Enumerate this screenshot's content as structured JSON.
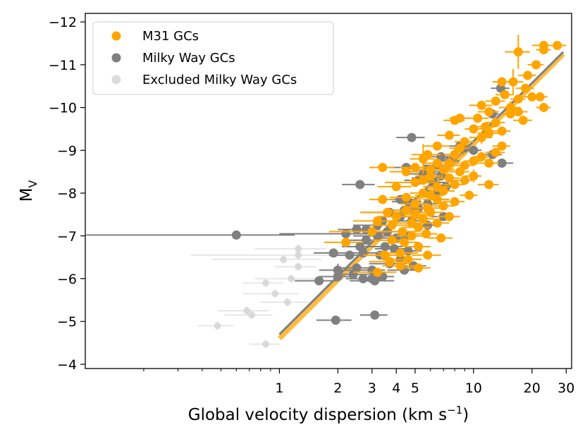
{
  "chart_data": {
    "type": "scatter",
    "title": "",
    "xlabel": "Global velocity dispersion (km s",
    "xlabel_sup": "−1",
    "xlabel_close": ")",
    "ylabel": "M",
    "ylabel_sub": "V",
    "xscale": "log",
    "xlim": [
      0.1,
      32
    ],
    "ylim": [
      -3.9,
      -12.2
    ],
    "x_ticks": [
      {
        "value": 1,
        "label": "1"
      },
      {
        "value": 2,
        "label": "2"
      },
      {
        "value": 3,
        "label": "3"
      },
      {
        "value": 4,
        "label": "4"
      },
      {
        "value": 5,
        "label": "5"
      },
      {
        "value": 10,
        "label": "10"
      },
      {
        "value": 20,
        "label": "20"
      },
      {
        "value": 30,
        "label": "30"
      }
    ],
    "y_ticks": [
      {
        "value": -4,
        "label": "−4"
      },
      {
        "value": -5,
        "label": "−5"
      },
      {
        "value": -6,
        "label": "−6"
      },
      {
        "value": -7,
        "label": "−7"
      },
      {
        "value": -8,
        "label": "−8"
      },
      {
        "value": -9,
        "label": "−9"
      },
      {
        "value": -10,
        "label": "−10"
      },
      {
        "value": -11,
        "label": "−11"
      },
      {
        "value": -12,
        "label": "−12"
      }
    ],
    "legend_position": "top-left",
    "series": [
      {
        "name": "M31 GCs",
        "color": "#FFA500",
        "points": [
          [
            27,
            -11.45,
            3,
            0.05
          ],
          [
            23,
            -11.45,
            3,
            0.08
          ],
          [
            23,
            -11.35,
            2,
            0.05
          ],
          [
            17,
            -11.3,
            2.5,
            0.4
          ],
          [
            21,
            -11.0,
            2,
            0.1
          ],
          [
            19,
            -10.75,
            2,
            0.1
          ],
          [
            16,
            -10.6,
            2,
            0.3
          ],
          [
            14,
            -10.6,
            1.5,
            0.1
          ],
          [
            18.5,
            -10.45,
            2,
            0.1
          ],
          [
            20,
            -10.25,
            2,
            0.1
          ],
          [
            14.5,
            -10.3,
            1.5,
            0.1
          ],
          [
            17,
            -10.2,
            1.5,
            0.1
          ],
          [
            22,
            -10.25,
            2,
            0.1
          ],
          [
            13,
            -10.15,
            1.5,
            0.1
          ],
          [
            15.5,
            -10.0,
            2,
            0.15
          ],
          [
            11,
            -10.05,
            1.5,
            0.1
          ],
          [
            12,
            -9.9,
            1.5,
            0.1
          ],
          [
            17,
            -9.9,
            2,
            0.1
          ],
          [
            23,
            -10.0,
            2,
            0.1
          ],
          [
            15.5,
            -9.85,
            1.5,
            0.1
          ],
          [
            10.5,
            -9.75,
            1.5,
            0.1
          ],
          [
            8.5,
            -9.75,
            1,
            0.1
          ],
          [
            8,
            -9.7,
            1,
            0.1
          ],
          [
            13,
            -9.65,
            1.5,
            0.1
          ],
          [
            18,
            -9.7,
            2,
            0.1
          ],
          [
            11.5,
            -9.55,
            1.5,
            0.1
          ],
          [
            10,
            -9.5,
            1,
            0.1
          ],
          [
            14,
            -9.45,
            1.5,
            0.1
          ],
          [
            12,
            -9.4,
            1.5,
            0.1
          ],
          [
            7.5,
            -9.35,
            1,
            0.1
          ],
          [
            11,
            -9.3,
            1.5,
            0.15
          ],
          [
            9,
            -9.2,
            1,
            0.1
          ],
          [
            8.5,
            -9.05,
            1,
            0.1
          ],
          [
            14,
            -9.1,
            1.5,
            0.1
          ],
          [
            6.5,
            -9.1,
            1,
            0.1
          ],
          [
            13,
            -8.95,
            1.5,
            0.1
          ],
          [
            5.8,
            -8.9,
            1,
            0.1
          ],
          [
            8,
            -8.9,
            1,
            0.15
          ],
          [
            11,
            -8.85,
            1,
            0.1
          ],
          [
            10,
            -8.75,
            1,
            0.1
          ],
          [
            5.5,
            -8.8,
            0.8,
            0.35
          ],
          [
            6.5,
            -8.7,
            1,
            0.1
          ],
          [
            12,
            -8.7,
            1.5,
            0.1
          ],
          [
            7.5,
            -8.7,
            1,
            0.15
          ],
          [
            9,
            -8.65,
            1,
            0.1
          ],
          [
            5,
            -8.6,
            0.8,
            0.1
          ],
          [
            3.4,
            -8.6,
            0.5,
            0.1
          ],
          [
            6,
            -8.55,
            1,
            0.1
          ],
          [
            7,
            -8.55,
            1,
            0.1
          ],
          [
            8.5,
            -8.5,
            1,
            0.1
          ],
          [
            4.5,
            -8.5,
            0.8,
            0.1
          ],
          [
            10,
            -8.4,
            1,
            0.15
          ],
          [
            6,
            -8.4,
            1,
            0.1
          ],
          [
            7.5,
            -8.35,
            1,
            0.1
          ],
          [
            9,
            -8.3,
            1,
            0.1
          ],
          [
            5.5,
            -8.3,
            0.8,
            0.1
          ],
          [
            5,
            -8.25,
            1.5,
            0.1
          ],
          [
            12,
            -8.2,
            1.5,
            0.1
          ],
          [
            8,
            -8.2,
            1,
            0.1
          ],
          [
            6.5,
            -8.15,
            1,
            0.1
          ],
          [
            7,
            -8.05,
            1,
            0.1
          ],
          [
            4,
            -8.15,
            0.8,
            0.1
          ],
          [
            5.5,
            -8.0,
            0.8,
            0.1
          ],
          [
            9.5,
            -7.95,
            1,
            0.1
          ],
          [
            6,
            -7.95,
            1,
            0.1
          ],
          [
            4.5,
            -7.9,
            0.8,
            0.1
          ],
          [
            3.4,
            -7.85,
            0.5,
            0.1
          ],
          [
            6.5,
            -7.85,
            1,
            0.1
          ],
          [
            8,
            -7.8,
            1,
            0.1
          ],
          [
            5,
            -7.75,
            0.8,
            0.1
          ],
          [
            7,
            -7.7,
            1,
            0.1
          ],
          [
            5.8,
            -7.65,
            1,
            0.1
          ],
          [
            4.5,
            -7.6,
            0.8,
            0.1
          ],
          [
            3.6,
            -7.55,
            1,
            0.1
          ],
          [
            6,
            -7.55,
            1,
            0.1
          ],
          [
            5,
            -7.5,
            0.8,
            0.1
          ],
          [
            7.5,
            -7.45,
            1,
            0.1
          ],
          [
            4,
            -7.45,
            0.8,
            0.1
          ],
          [
            5.5,
            -7.4,
            0.8,
            0.1
          ],
          [
            3.2,
            -7.35,
            0.8,
            0.1
          ],
          [
            4.8,
            -7.3,
            1,
            0.1
          ],
          [
            6.5,
            -7.3,
            1,
            0.1
          ],
          [
            3.8,
            -7.25,
            0.8,
            0.1
          ],
          [
            5.2,
            -7.2,
            0.8,
            0.1
          ],
          [
            4.3,
            -7.1,
            0.8,
            0.1
          ],
          [
            3,
            -7.1,
            1.2,
            0.1
          ],
          [
            5.7,
            -7.05,
            0.8,
            0.1
          ],
          [
            4.8,
            -7.0,
            0.8,
            0.1
          ],
          [
            6.8,
            -6.95,
            1,
            0.1
          ],
          [
            3.8,
            -6.9,
            0.8,
            0.1
          ],
          [
            4.4,
            -6.85,
            0.8,
            0.1
          ],
          [
            2.2,
            -6.85,
            0.5,
            0.1
          ],
          [
            5.2,
            -6.75,
            0.8,
            0.1
          ],
          [
            4.2,
            -6.6,
            1,
            0.1
          ],
          [
            5.8,
            -6.55,
            1,
            0.1
          ],
          [
            3.5,
            -6.55,
            0.8,
            0.1
          ],
          [
            4.6,
            -6.45,
            0.8,
            0.1
          ],
          [
            3.7,
            -6.4,
            0.8,
            0.1
          ],
          [
            4.2,
            -6.3,
            0.8,
            0.1
          ],
          [
            5.2,
            -6.25,
            0.8,
            0.1
          ],
          [
            3.2,
            -6.15,
            0.8,
            0.1
          ]
        ]
      },
      {
        "name": "Milky Way GCs",
        "color": "#808080",
        "points": [
          [
            13.8,
            -10.45,
            1.5,
            0.1
          ],
          [
            12.5,
            -9.85,
            1,
            0.1
          ],
          [
            4.8,
            -9.3,
            0.8,
            0.1
          ],
          [
            8.5,
            -9.1,
            1,
            0.1
          ],
          [
            9,
            -9.05,
            1,
            0.1
          ],
          [
            10,
            -9.0,
            1,
            0.1
          ],
          [
            8,
            -8.9,
            1,
            0.1
          ],
          [
            12.5,
            -8.9,
            1.5,
            0.1
          ],
          [
            6.8,
            -8.85,
            1,
            0.1
          ],
          [
            7.5,
            -8.75,
            1,
            0.1
          ],
          [
            14,
            -8.7,
            2,
            0.1
          ],
          [
            6.5,
            -8.65,
            1,
            0.1
          ],
          [
            4.5,
            -8.6,
            0.8,
            0.1
          ],
          [
            5.8,
            -8.55,
            1,
            0.1
          ],
          [
            6,
            -8.5,
            1,
            0.1
          ],
          [
            5.5,
            -8.45,
            1,
            0.1
          ],
          [
            6.8,
            -8.4,
            1,
            0.1
          ],
          [
            5.8,
            -8.35,
            1,
            0.1
          ],
          [
            5.2,
            -8.3,
            0.8,
            0.1
          ],
          [
            6.2,
            -8.25,
            1,
            0.1
          ],
          [
            2.6,
            -8.2,
            0.5,
            0.1
          ],
          [
            7.2,
            -8.15,
            1,
            0.1
          ],
          [
            6.5,
            -8.05,
            1,
            0.1
          ],
          [
            5.6,
            -8.0,
            0.8,
            0.1
          ],
          [
            4.2,
            -7.85,
            0.8,
            0.1
          ],
          [
            6.5,
            -7.85,
            1,
            0.1
          ],
          [
            4.6,
            -7.8,
            0.8,
            0.1
          ],
          [
            5.8,
            -7.75,
            0.8,
            0.1
          ],
          [
            5.2,
            -7.65,
            0.8,
            0.1
          ],
          [
            4.4,
            -7.6,
            0.8,
            0.1
          ],
          [
            3.7,
            -7.55,
            1,
            0.1
          ],
          [
            5,
            -7.55,
            0.8,
            0.1
          ],
          [
            7,
            -7.45,
            1,
            0.1
          ],
          [
            4.2,
            -7.45,
            0.8,
            0.1
          ],
          [
            3.4,
            -7.35,
            1,
            0.1
          ],
          [
            4.8,
            -7.35,
            0.8,
            0.1
          ],
          [
            5.8,
            -7.25,
            0.8,
            0.1
          ],
          [
            3.2,
            -7.25,
            0.8,
            0.1
          ],
          [
            2.8,
            -7.15,
            0.5,
            0.1
          ],
          [
            3.6,
            -7.1,
            0.8,
            0.1
          ],
          [
            2.5,
            -7.15,
            0.5,
            0.1
          ],
          [
            4.5,
            -7.0,
            0.8,
            0.1
          ],
          [
            3.2,
            -7.0,
            0.8,
            0.1
          ],
          [
            2.2,
            -7.05,
            1.2,
            0.1
          ],
          [
            4,
            -6.95,
            0.8,
            0.1
          ],
          [
            0.6,
            -7.02,
            0.6,
            0.1
          ],
          [
            2.8,
            -6.9,
            0.5,
            0.1
          ],
          [
            3.5,
            -6.75,
            0.8,
            0.1
          ],
          [
            2.6,
            -6.75,
            0.5,
            0.1
          ],
          [
            3.9,
            -6.7,
            0.8,
            0.1
          ],
          [
            4.6,
            -6.65,
            0.8,
            0.1
          ],
          [
            2.7,
            -6.6,
            0.5,
            0.1
          ],
          [
            3.3,
            -6.55,
            0.8,
            0.1
          ],
          [
            1.9,
            -6.6,
            0.4,
            0.1
          ],
          [
            2.3,
            -6.55,
            0.5,
            0.1
          ],
          [
            4.2,
            -6.45,
            0.8,
            0.1
          ],
          [
            3.7,
            -6.35,
            0.8,
            0.1
          ],
          [
            4.9,
            -6.3,
            0.8,
            0.1
          ],
          [
            2.5,
            -6.25,
            0.5,
            0.1
          ],
          [
            4.4,
            -6.2,
            0.8,
            0.1
          ],
          [
            3,
            -6.2,
            0.5,
            0.1
          ],
          [
            2,
            -6.2,
            0.4,
            0.15
          ],
          [
            2.4,
            -6.1,
            0.5,
            0.1
          ],
          [
            2,
            -6.05,
            0.4,
            0.1
          ],
          [
            3.4,
            -6.05,
            0.5,
            0.1
          ],
          [
            3,
            -6.0,
            0.5,
            0.1
          ],
          [
            2.7,
            -6.0,
            0.5,
            0.1
          ],
          [
            3.1,
            -5.95,
            0.8,
            0.1
          ],
          [
            1.6,
            -5.95,
            0.4,
            0.1
          ],
          [
            3.1,
            -5.15,
            0.5,
            0.1
          ],
          [
            1.95,
            -5.03,
            0.4,
            0.1
          ]
        ]
      },
      {
        "name": "Excluded Milky Way GCs",
        "color": "#D3D3D3",
        "points": [
          [
            1.25,
            -6.7,
            0.5,
            0.1
          ],
          [
            1.25,
            -6.55,
            0.9,
            0.1
          ],
          [
            1.05,
            -6.45,
            0.6,
            0.1
          ],
          [
            1.25,
            -6.28,
            0.3,
            0.1
          ],
          [
            1.15,
            -6.0,
            0.4,
            0.1
          ],
          [
            0.85,
            -5.9,
            0.2,
            0.1
          ],
          [
            0.95,
            -5.65,
            0.3,
            0.1
          ],
          [
            1.1,
            -5.45,
            0.3,
            0.1
          ],
          [
            0.68,
            -5.25,
            0.2,
            0.1
          ],
          [
            0.72,
            -5.15,
            0.2,
            0.1
          ],
          [
            0.48,
            -4.9,
            0.1,
            0.1
          ],
          [
            0.85,
            -4.47,
            0.15,
            0.1
          ]
        ]
      }
    ],
    "fits": [
      {
        "name": "M31 GCs fit",
        "color": "#FFA500",
        "x": [
          1,
          29
        ],
        "y": [
          -4.6,
          -11.25
        ]
      },
      {
        "name": "Milky Way GCs fit",
        "color": "#808080",
        "x": [
          1,
          29
        ],
        "y": [
          -4.7,
          -11.3
        ]
      }
    ]
  }
}
